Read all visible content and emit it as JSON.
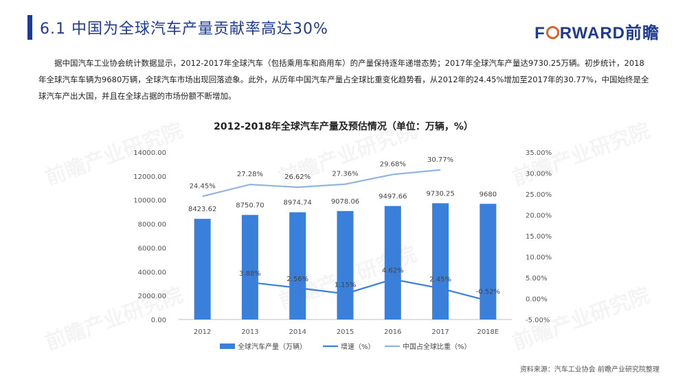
{
  "header": {
    "title": "6.1 中国为全球汽车产量贡献率高达30%",
    "logo_prefix": "F",
    "logo_suffix": "RWARD前瞻",
    "brand_color": "#1f3a93",
    "accent_color": "#e0602a"
  },
  "intro_text": "据中国汽车工业协会统计数据显示，2012-2017年全球汽车（包括乘用车和商用车）的产量保持逐年递增态势；2017年全球汽车产量达9730.25万辆。初步统计，2018年全球汽车车辆为9680万辆，全球汽车市场出现回落迹象。此外，从历年中国汽车产量占全球比重变化趋势看，从2012年的24.45%增加至2017年的30.77%，中国始终是全球汽车产出大国，并且在全球占据的市场份额不断增加。",
  "watermark_text": "前瞻产业研究院",
  "source_text": "资料来源：汽车工业协会 前瞻产业研究院整理",
  "chart_data": {
    "type": "bar",
    "title": "2012-2018年全球汽车产量及预估情况（单位：万辆，%）",
    "categories": [
      "2012",
      "2013",
      "2014",
      "2015",
      "2016",
      "2017",
      "2018E"
    ],
    "ylim": [
      0,
      14000
    ],
    "y_ticks": [
      "0.00",
      "2000.00",
      "4000.00",
      "6000.00",
      "8000.00",
      "10000.00",
      "12000.00",
      "14000.00"
    ],
    "y2lim": [
      -5,
      35
    ],
    "y2_ticks": [
      "-5.00%",
      "0.00%",
      "5.00%",
      "10.00%",
      "15.00%",
      "20.00%",
      "25.00%",
      "30.00%",
      "35.00%"
    ],
    "grid": false,
    "legend_position": "bottom",
    "series": [
      {
        "name": "全球汽车产量（万辆）",
        "kind": "bar",
        "axis": "left",
        "color": "#3a7fd9",
        "values": [
          8423.62,
          8750.7,
          8974.74,
          9078.06,
          9497.66,
          9730.25,
          9680
        ],
        "labels": [
          "8423.62",
          "8750.70",
          "8974.74",
          "9078.06",
          "9497.66",
          "9730.25",
          "9680"
        ]
      },
      {
        "name": "增速（%）",
        "kind": "line",
        "axis": "right",
        "color": "#3a7fd9",
        "values": [
          null,
          3.88,
          2.56,
          1.15,
          4.62,
          2.45,
          -0.52
        ],
        "labels": [
          "",
          "3.88%",
          "2.56%",
          "1.15%",
          "4.62%",
          "2.45%",
          "-0.52%"
        ]
      },
      {
        "name": "中国占全球比重（%）",
        "kind": "line",
        "axis": "right",
        "color": "#8fb4e3",
        "values": [
          24.45,
          27.28,
          26.62,
          27.36,
          29.68,
          30.77,
          null
        ],
        "labels": [
          "24.45%",
          "27.28%",
          "26.62%",
          "27.36%",
          "29.68%",
          "30.77%",
          ""
        ]
      }
    ]
  }
}
